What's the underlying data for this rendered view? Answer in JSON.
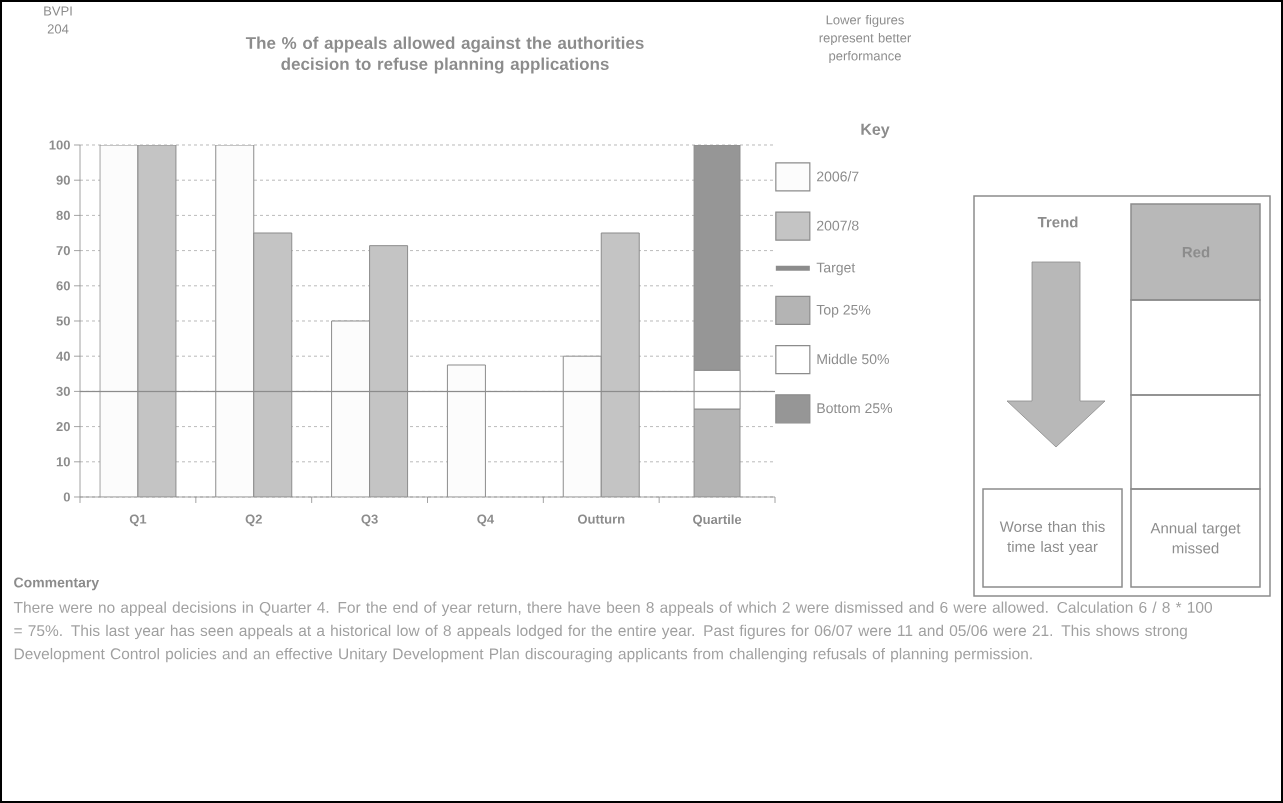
{
  "chart_data": [
    {
      "type": "bar",
      "title": "The % of appeals allowed against the authorities decision to refuse planning applications",
      "categories": [
        "Q1",
        "Q2",
        "Q3",
        "Q4",
        "Outturn",
        "Quartile"
      ],
      "series": [
        {
          "name": "2006/7",
          "color": "#fcfcfc",
          "values": [
            100,
            100,
            50,
            37.5,
            40,
            null
          ]
        },
        {
          "name": "2007/8",
          "color": "#c4c4c4",
          "values": [
            100,
            75,
            71.4,
            null,
            75,
            null
          ]
        },
        {
          "name": "Top 25%",
          "color": "#b4b4b4",
          "base": [
            null,
            null,
            null,
            null,
            null,
            0
          ],
          "values": [
            null,
            null,
            null,
            null,
            null,
            25
          ]
        },
        {
          "name": "Middle 50%",
          "color": "#ffffff",
          "base": [
            null,
            null,
            null,
            null,
            null,
            25
          ],
          "values": [
            null,
            null,
            null,
            null,
            null,
            11
          ]
        },
        {
          "name": "Bottom 25%",
          "color": "#969696",
          "base": [
            null,
            null,
            null,
            null,
            null,
            36
          ],
          "values": [
            null,
            null,
            null,
            null,
            null,
            64
          ]
        }
      ],
      "ylim": [
        0,
        100
      ],
      "yticks": [
        0,
        10,
        20,
        30,
        40,
        50,
        60,
        70,
        80,
        90,
        100
      ],
      "grid": "y",
      "ref_lines": [
        {
          "axis": "y",
          "value": 30,
          "label": "Target",
          "color": "#8c8c8c"
        }
      ],
      "legend": "right",
      "legend_title": "Key",
      "annotations": [
        "BVPI 204",
        "Lower figures represent better performance",
        "Commentary",
        "There were no appeal decisions in Quarter 4. For the end of year return, there have been 8 appeals of which 2 were dismissed and 6 were allowed. Calculation 6 / 8 * 100 = 75%. This last year has seen appeals at a historical low of 8 appeals lodged for the entire year. Past figures for 06/07 were 11 and 05/06 were 21. This shows strong Development Control policies and an effective Unitary Development Plan discouraging applicants from challenging refusals of planning permission."
      ]
    },
    {
      "type": "other",
      "title": "Trend",
      "annotations": [
        "Red",
        "Worse than this time last year",
        "Annual target missed"
      ]
    }
  ]
}
